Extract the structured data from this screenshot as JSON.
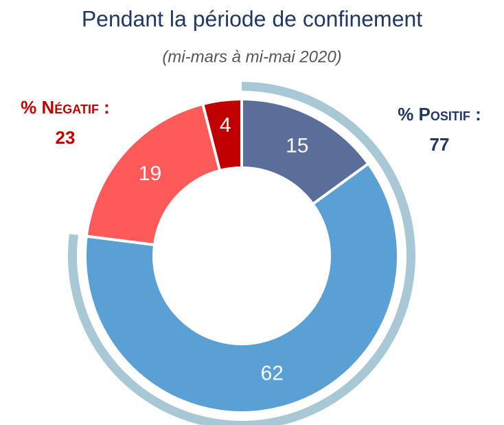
{
  "chart_data": {
    "type": "donut",
    "title": "Pendant la période de confinement",
    "subtitle": "(mi-mars à mi-mai 2020)",
    "categories": [
      null,
      null,
      null,
      null
    ],
    "values": [
      15,
      62,
      19,
      4
    ],
    "colors": [
      "#5a6e99",
      "#5aa0d5",
      "#ff5a5a",
      "#c00000"
    ],
    "groups": [
      {
        "label": "% Positif :",
        "value": 77,
        "color": "#1f3864",
        "ring_color": "#a9c8d6"
      },
      {
        "label": "% Négatif :",
        "value": 23,
        "color": "#c00000"
      }
    ]
  }
}
